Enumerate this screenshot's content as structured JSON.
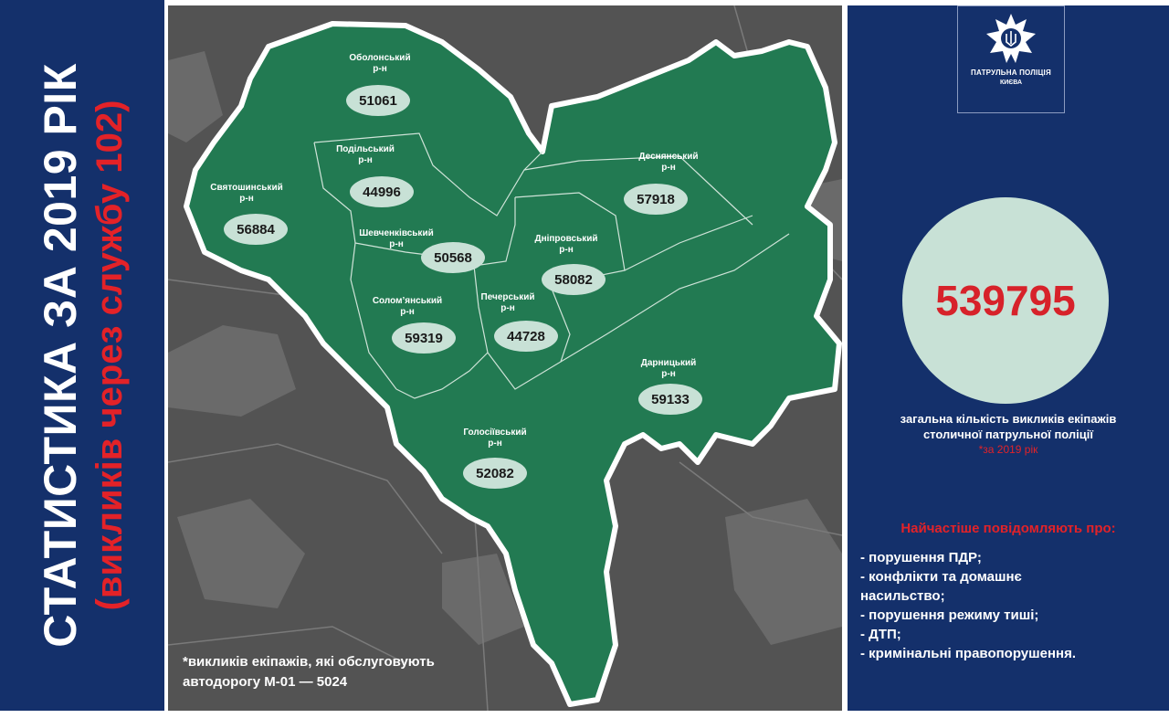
{
  "title": {
    "main": "СТАТИСТИКА ЗА 2019 РІК",
    "sub": "(викликів через службу 102)"
  },
  "logo": {
    "line1": "ПАТРУЛЬНА ПОЛІЦІЯ",
    "line2": "КИЄВА",
    "icon": "police-star-emblem-icon"
  },
  "districts": [
    {
      "id": "obolonskyi",
      "name": "Оболонський",
      "suffix": "р-н",
      "value": "51061"
    },
    {
      "id": "podilskyi",
      "name": "Подільський",
      "suffix": "р-н",
      "value": "44996"
    },
    {
      "id": "sviatoshynskyi",
      "name": "Святошинський",
      "suffix": "р-н",
      "value": "56884"
    },
    {
      "id": "shevchenkivskyi",
      "name": "Шевченківський",
      "suffix": "р-н",
      "value": "50568"
    },
    {
      "id": "desnianskyi",
      "name": "Деснянський",
      "suffix": "р-н",
      "value": "57918"
    },
    {
      "id": "dniprovskyi",
      "name": "Дніпровський",
      "suffix": "р-н",
      "value": "58082"
    },
    {
      "id": "solomianskyi",
      "name": "Солом’янський",
      "suffix": "р-н",
      "value": "59319"
    },
    {
      "id": "pecherskyi",
      "name": "Печерський",
      "suffix": "р-н",
      "value": "44728"
    },
    {
      "id": "darnytskyi",
      "name": "Дарницький",
      "suffix": "р-н",
      "value": "59133"
    },
    {
      "id": "holosiivskyi",
      "name": "Голосіївський",
      "suffix": "р-н",
      "value": "52082"
    }
  ],
  "map_note": {
    "line1": "*викликів екіпажів, які обслуговують",
    "line2": "автодорогу М-01 — 5024"
  },
  "total": {
    "value": "539795",
    "desc_line1": "загальна кількість викликів екіпажів",
    "desc_line2": "столичної патрульної поліції",
    "period": "*за 2019 рік"
  },
  "reasons": {
    "title": "Найчастіше повідомляють про:",
    "items": [
      "- порушення ПДР;",
      "- конфлікти та домашнє",
      "насильство;",
      "- порушення режиму тиші;",
      "- ДТП;",
      "- кримінальні правопорушення."
    ]
  },
  "colors": {
    "navy": "#14306b",
    "map_green": "#227a52",
    "map_bg": "#535353",
    "accent_red": "#e32228",
    "bubble": "#c8e1d6"
  }
}
